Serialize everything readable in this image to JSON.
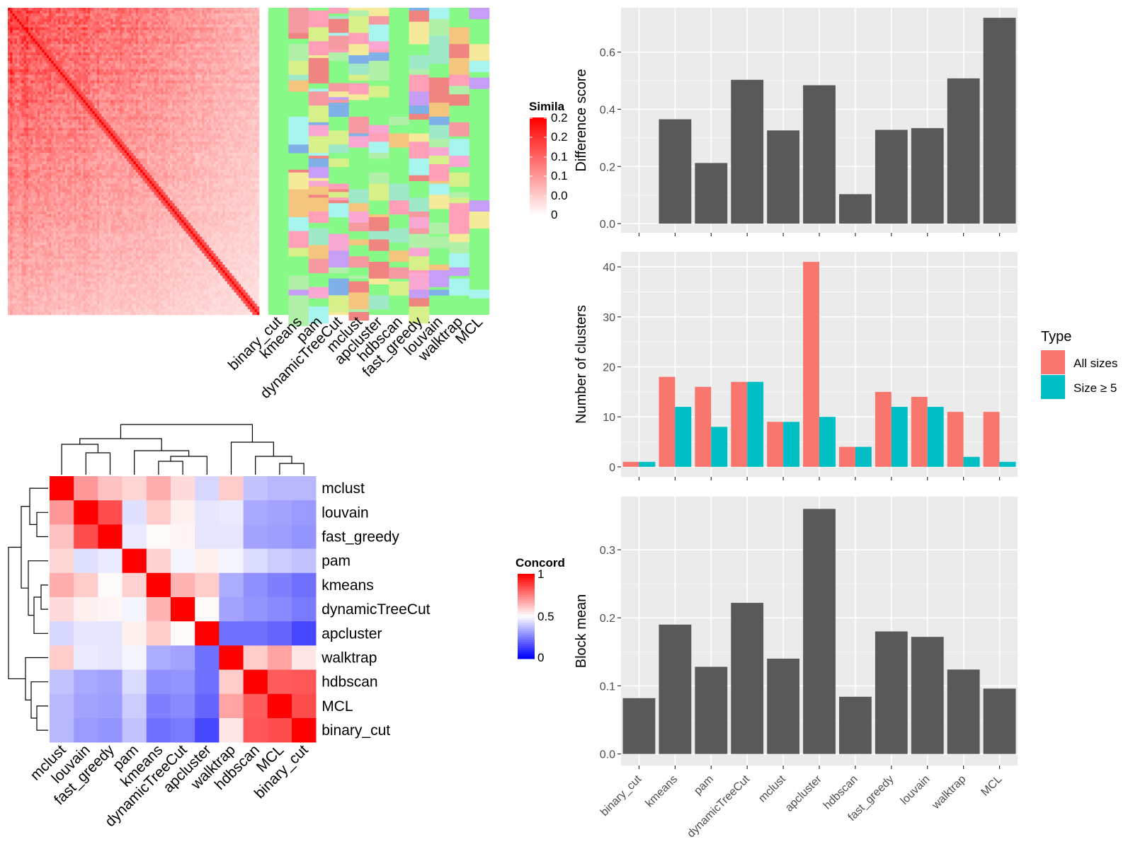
{
  "colors": {
    "panel_bg": "#ebebeb",
    "grid_major": "#ffffff",
    "bar_dark": "#595959",
    "all_sizes": "#f8766d",
    "size_ge5": "#00bfc4",
    "sim_high": "#ff0000",
    "sim_low": "#ffffff",
    "conc_high": "#ff0000",
    "conc_mid": "#ffffff",
    "conc_low": "#0000ff",
    "assign_bg": "#87f987"
  },
  "methods_order": [
    "binary_cut",
    "kmeans",
    "pam",
    "dynamicTreeCut",
    "mclust",
    "apcluster",
    "hdbscan",
    "fast_greedy",
    "louvain",
    "walktrap",
    "MCL"
  ],
  "similarity_legend": {
    "title": "Simila",
    "tick_labels": [
      "0.2",
      "0.2",
      "0.1",
      "0.1",
      "0.0",
      "0"
    ]
  },
  "concordance_legend": {
    "title": "Concord",
    "tick_labels": [
      "1",
      "0.5",
      "0"
    ]
  },
  "concordance_heatmap": {
    "row_labels": [
      "mclust",
      "louvain",
      "fast_greedy",
      "pam",
      "kmeans",
      "dynamicTreeCut",
      "apcluster",
      "walktrap",
      "hdbscan",
      "MCL",
      "binary_cut"
    ],
    "col_labels": [
      "mclust",
      "louvain",
      "fast_greedy",
      "pam",
      "kmeans",
      "dynamicTreeCut",
      "apcluster",
      "walktrap",
      "hdbscan",
      "MCL",
      "binary_cut"
    ],
    "values": [
      [
        1.0,
        0.7,
        0.62,
        0.58,
        0.66,
        0.57,
        0.42,
        0.6,
        0.38,
        0.36,
        0.36
      ],
      [
        0.7,
        1.0,
        0.85,
        0.44,
        0.6,
        0.53,
        0.45,
        0.46,
        0.33,
        0.32,
        0.3
      ],
      [
        0.62,
        0.85,
        1.0,
        0.46,
        0.51,
        0.52,
        0.45,
        0.45,
        0.32,
        0.31,
        0.29
      ],
      [
        0.58,
        0.44,
        0.46,
        1.0,
        0.59,
        0.48,
        0.53,
        0.48,
        0.43,
        0.4,
        0.38
      ],
      [
        0.66,
        0.6,
        0.51,
        0.59,
        1.0,
        0.65,
        0.6,
        0.34,
        0.28,
        0.25,
        0.22
      ],
      [
        0.57,
        0.53,
        0.52,
        0.48,
        0.65,
        1.0,
        0.51,
        0.32,
        0.29,
        0.27,
        0.24
      ],
      [
        0.42,
        0.45,
        0.45,
        0.53,
        0.6,
        0.51,
        1.0,
        0.22,
        0.22,
        0.2,
        0.14
      ],
      [
        0.6,
        0.46,
        0.45,
        0.48,
        0.34,
        0.32,
        0.22,
        1.0,
        0.6,
        0.68,
        0.55
      ],
      [
        0.38,
        0.33,
        0.32,
        0.43,
        0.28,
        0.29,
        0.22,
        0.6,
        1.0,
        0.82,
        0.83
      ],
      [
        0.36,
        0.32,
        0.31,
        0.4,
        0.25,
        0.27,
        0.2,
        0.68,
        0.82,
        1.0,
        0.85
      ],
      [
        0.36,
        0.3,
        0.29,
        0.38,
        0.22,
        0.24,
        0.14,
        0.55,
        0.83,
        0.85,
        1.0
      ]
    ]
  },
  "assignment_heatmap": {
    "col_labels": [
      "binary_cut",
      "kmeans",
      "pam",
      "dynamicTreeCut",
      "mclust",
      "apcluster",
      "hdbscan",
      "fast_greedy",
      "louvain",
      "walktrap",
      "MCL"
    ]
  },
  "chart_data": [
    {
      "type": "bar",
      "categories": [
        "binary_cut",
        "kmeans",
        "pam",
        "dynamicTreeCut",
        "mclust",
        "apcluster",
        "hdbscan",
        "fast_greedy",
        "louvain",
        "walktrap",
        "MCL"
      ],
      "values": [
        0,
        0.365,
        0.212,
        0.503,
        0.326,
        0.484,
        0.103,
        0.328,
        0.334,
        0.508,
        0.72
      ],
      "title": "",
      "xlabel": "",
      "ylabel": "Difference score",
      "ylim": [
        -0.032,
        0.755
      ],
      "ytick_labels": [
        "0.0",
        "0.2",
        "0.4",
        "0.6"
      ],
      "yticks": [
        0,
        0.2,
        0.4,
        0.6
      ],
      "grid": true
    },
    {
      "type": "bar",
      "categories": [
        "binary_cut",
        "kmeans",
        "pam",
        "dynamicTreeCut",
        "mclust",
        "apcluster",
        "hdbscan",
        "fast_greedy",
        "louvain",
        "walktrap",
        "MCL"
      ],
      "series": [
        {
          "name": "All sizes",
          "values": [
            1,
            18,
            16,
            17,
            9,
            41,
            4,
            15,
            14,
            11,
            11
          ]
        },
        {
          "name": "Size ≥ 5",
          "values": [
            1,
            12,
            8,
            17,
            9,
            10,
            4,
            12,
            12,
            2,
            1
          ]
        }
      ],
      "title": "",
      "xlabel": "",
      "ylabel": "Number of clusters",
      "ylim": [
        -2,
        43
      ],
      "ytick_labels": [
        "0",
        "10",
        "20",
        "30",
        "40"
      ],
      "yticks": [
        0,
        10,
        20,
        30,
        40
      ],
      "legend_title": "Type",
      "legend_position": "right",
      "grid": true
    },
    {
      "type": "bar",
      "categories": [
        "binary_cut",
        "kmeans",
        "pam",
        "dynamicTreeCut",
        "mclust",
        "apcluster",
        "hdbscan",
        "fast_greedy",
        "louvain",
        "walktrap",
        "MCL"
      ],
      "values": [
        0.082,
        0.19,
        0.128,
        0.222,
        0.14,
        0.36,
        0.084,
        0.18,
        0.172,
        0.124,
        0.096
      ],
      "title": "",
      "xlabel": "",
      "ylabel": "Block mean",
      "ylim": [
        -0.017,
        0.378
      ],
      "ytick_labels": [
        "0.0",
        "0.1",
        "0.2",
        "0.3"
      ],
      "yticks": [
        0,
        0.1,
        0.2,
        0.3
      ],
      "grid": true
    }
  ]
}
